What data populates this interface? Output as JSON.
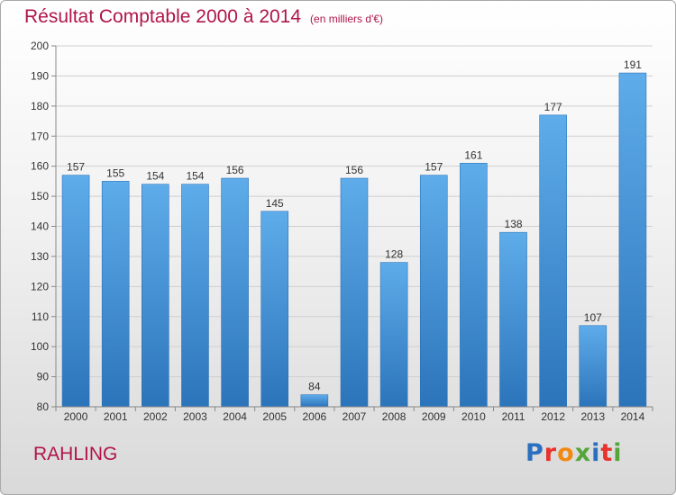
{
  "chart_data": {
    "type": "bar",
    "title": "Résultat Comptable 2000 à 2014",
    "subtitle": "(en milliers d'€)",
    "categories": [
      "2000",
      "2001",
      "2002",
      "2003",
      "2004",
      "2005",
      "2006",
      "2007",
      "2008",
      "2009",
      "2010",
      "2011",
      "2012",
      "2013",
      "2014"
    ],
    "values": [
      157,
      155,
      154,
      154,
      156,
      145,
      84,
      156,
      128,
      157,
      161,
      138,
      177,
      107,
      191
    ],
    "ylim": [
      80,
      200
    ],
    "yticks": [
      80,
      90,
      100,
      110,
      120,
      130,
      140,
      150,
      160,
      170,
      180,
      190,
      200
    ],
    "grid": true,
    "legend": "none",
    "colors": {
      "bar": "#3d8fd8",
      "bar_top": "#5eacea",
      "bar_bottom": "#2c74ba",
      "text": "#333333",
      "title": "#b0154a"
    }
  },
  "footer": {
    "place": "RAHLING",
    "logo_text": "Proxiti",
    "logo_colors": [
      "#2a6fc0",
      "#e8332c",
      "#f28a12",
      "#55a63a",
      "#2a6fc0",
      "#e8332c",
      "#55a63a"
    ]
  }
}
